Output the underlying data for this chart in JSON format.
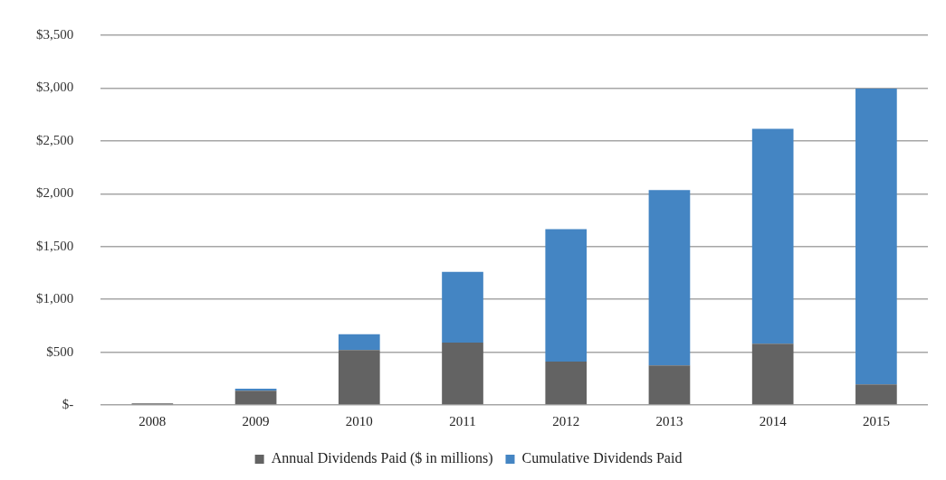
{
  "chart_data": {
    "type": "bar",
    "stacked": true,
    "categories": [
      "2008",
      "2009",
      "2010",
      "2011",
      "2012",
      "2013",
      "2014",
      "2015"
    ],
    "series": [
      {
        "name": "Annual Dividends Paid ($ in millions)",
        "color": "#636363",
        "values": [
          15,
          135,
          520,
          590,
          410,
          375,
          580,
          195
        ]
      },
      {
        "name": "Cumulative Dividends Paid",
        "color": "#4485c3",
        "values": [
          0,
          20,
          150,
          670,
          1255,
          1660,
          2035,
          2800
        ]
      }
    ],
    "ylim": [
      0,
      3500
    ],
    "yticks": [
      {
        "value": 0,
        "label": "$-"
      },
      {
        "value": 500,
        "label": "$500"
      },
      {
        "value": 1000,
        "label": "$1,000"
      },
      {
        "value": 1500,
        "label": "$1,500"
      },
      {
        "value": 2000,
        "label": "$2,000"
      },
      {
        "value": 2500,
        "label": "$2,500"
      },
      {
        "value": 3000,
        "label": "$3,000"
      },
      {
        "value": 3500,
        "label": "$3,500"
      }
    ],
    "grid": "y",
    "legend": "bottom"
  }
}
